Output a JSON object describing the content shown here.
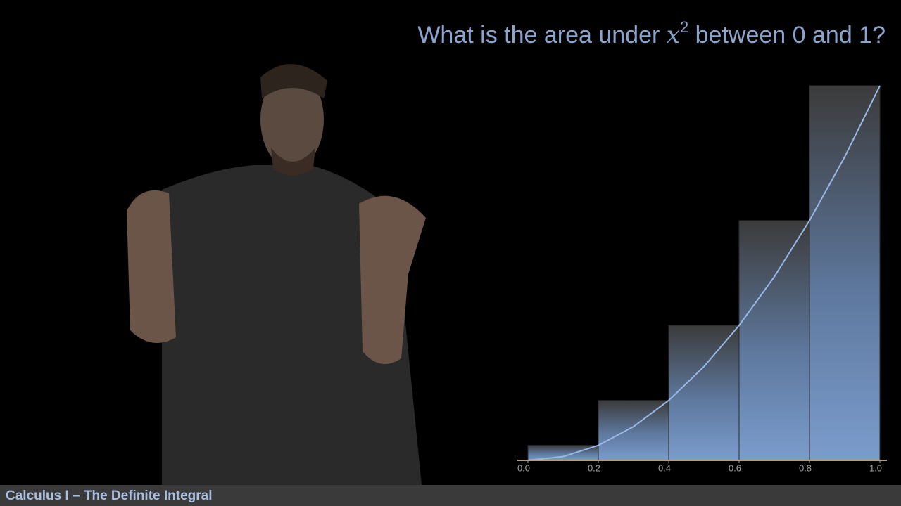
{
  "chart_data": {
    "type": "histogram",
    "title": {
      "before": "What is the area under ",
      "variable": "x",
      "exponent": "2",
      "after": " between 0 and 1?"
    },
    "bins": [
      0,
      0.2,
      0.4,
      0.6,
      0.8,
      1.0
    ],
    "values": [
      0.04,
      0.16,
      0.36,
      0.64,
      1.0
    ],
    "color": "#7b9ccc",
    "curve": {
      "color": "#9ab8e6",
      "x": [
        0,
        0.1,
        0.2,
        0.3,
        0.4,
        0.5,
        0.6,
        0.7,
        0.8,
        0.9,
        1.0
      ],
      "values": [
        0,
        0.01,
        0.04,
        0.09,
        0.16,
        0.25,
        0.36,
        0.49,
        0.64,
        0.81,
        1.0
      ]
    },
    "xlim": [
      0,
      1
    ],
    "ylim": [
      0,
      1
    ],
    "xticks": [
      {
        "value": 0,
        "label": "0.0"
      },
      {
        "value": 0.2,
        "label": "0.2"
      },
      {
        "value": 0.4,
        "label": "0.4"
      },
      {
        "value": 0.6,
        "label": "0.6"
      },
      {
        "value": 0.8,
        "label": "0.8"
      },
      {
        "value": 1.0,
        "label": "1.0"
      }
    ]
  },
  "footer": "Calculus I – The Definite Integral"
}
